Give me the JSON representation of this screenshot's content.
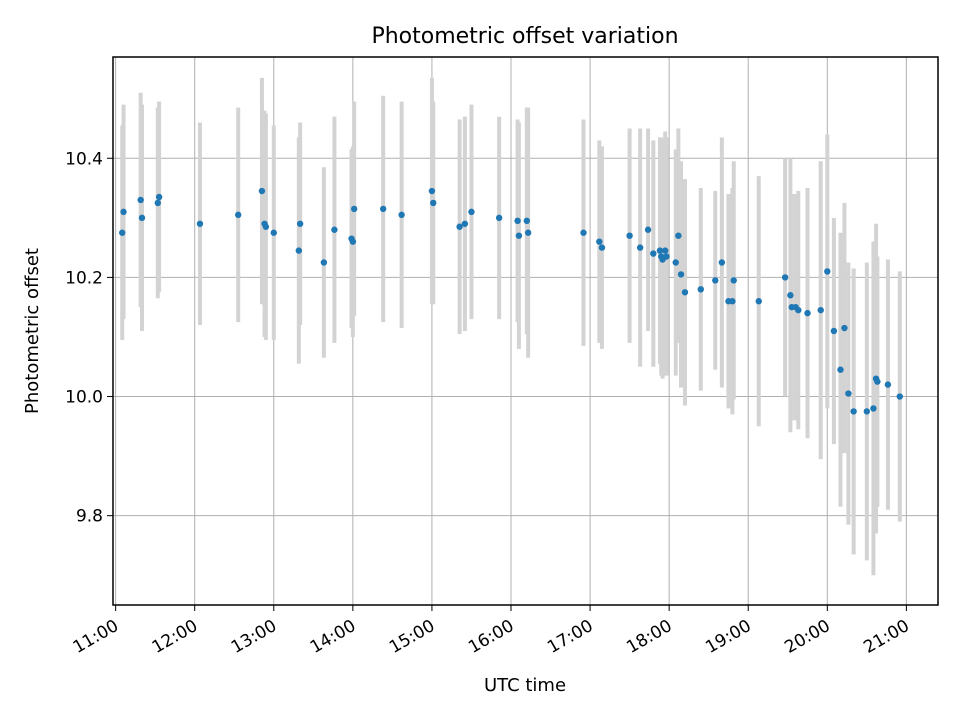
{
  "chart_data": {
    "type": "scatter",
    "title": "Photometric offset variation",
    "xlabel": "UTC time",
    "ylabel": "Photometric offset",
    "x_ticks": [
      "11:00",
      "12:00",
      "13:00",
      "14:00",
      "15:00",
      "16:00",
      "17:00",
      "18:00",
      "19:00",
      "20:00",
      "21:00"
    ],
    "y_ticks": [
      "9.8",
      "10.0",
      "10.2",
      "10.4"
    ],
    "xlim": [
      "10:58",
      "21:24"
    ],
    "ylim": [
      9.65,
      10.57
    ],
    "grid": true,
    "colors": {
      "point": "#1f77b4",
      "errorbar": "#d3d3d3",
      "grid": "#b0b0b0"
    },
    "x": [
      "11:05",
      "11:06",
      "11:19",
      "11:20",
      "11:32",
      "11:33",
      "12:04",
      "12:33",
      "12:51",
      "12:53",
      "12:54",
      "13:00",
      "13:19",
      "13:20",
      "13:38",
      "13:46",
      "13:59",
      "14:00",
      "14:01",
      "14:23",
      "14:37",
      "15:00",
      "15:01",
      "15:21",
      "15:25",
      "15:30",
      "15:51",
      "16:05",
      "16:06",
      "16:12",
      "16:13",
      "16:55",
      "17:07",
      "17:09",
      "17:30",
      "17:38",
      "17:44",
      "17:48",
      "17:53",
      "17:54",
      "17:55",
      "17:57",
      "17:58",
      "18:05",
      "18:07",
      "18:09",
      "18:12",
      "18:24",
      "18:35",
      "18:40",
      "18:45",
      "18:48",
      "18:49",
      "19:08",
      "19:28",
      "19:32",
      "19:33",
      "19:36",
      "19:38",
      "19:45",
      "19:55",
      "20:00",
      "20:05",
      "20:10",
      "20:13",
      "20:16",
      "20:20",
      "20:30",
      "20:35",
      "20:37",
      "20:38",
      "20:46",
      "20:55"
    ],
    "y": [
      10.275,
      10.31,
      10.33,
      10.3,
      10.325,
      10.335,
      10.29,
      10.305,
      10.345,
      10.29,
      10.285,
      10.275,
      10.245,
      10.29,
      10.225,
      10.28,
      10.265,
      10.26,
      10.315,
      10.315,
      10.305,
      10.345,
      10.325,
      10.285,
      10.29,
      10.31,
      10.3,
      10.295,
      10.27,
      10.295,
      10.275,
      10.275,
      10.26,
      10.25,
      10.27,
      10.25,
      10.28,
      10.24,
      10.245,
      10.235,
      10.23,
      10.245,
      10.235,
      10.225,
      10.27,
      10.205,
      10.175,
      10.18,
      10.195,
      10.225,
      10.16,
      10.16,
      10.195,
      10.16,
      10.2,
      10.17,
      10.15,
      10.15,
      10.145,
      10.14,
      10.145,
      10.21,
      10.11,
      10.045,
      10.115,
      10.005,
      9.975,
      9.975,
      9.98,
      10.03,
      10.025,
      10.02,
      10.0
    ],
    "yerr": [
      0.18,
      0.18,
      0.18,
      0.19,
      0.16,
      0.16,
      0.17,
      0.18,
      0.19,
      0.19,
      0.19,
      0.18,
      0.19,
      0.17,
      0.16,
      0.19,
      0.15,
      0.16,
      0.18,
      0.19,
      0.19,
      0.19,
      0.17,
      0.18,
      0.18,
      0.18,
      0.17,
      0.17,
      0.19,
      0.19,
      0.21,
      0.19,
      0.17,
      0.17,
      0.18,
      0.2,
      0.17,
      0.19,
      0.19,
      0.2,
      0.2,
      0.2,
      0.2,
      0.19,
      0.18,
      0.19,
      0.19,
      0.17,
      0.15,
      0.21,
      0.18,
      0.19,
      0.2,
      0.21,
      0.2,
      0.23,
      0.19,
      0.19,
      0.2,
      0.21,
      0.25,
      0.23,
      0.19,
      0.23,
      0.21,
      0.22,
      0.24,
      0.25,
      0.28,
      0.26,
      0.21,
      0.21,
      0.21
    ]
  }
}
